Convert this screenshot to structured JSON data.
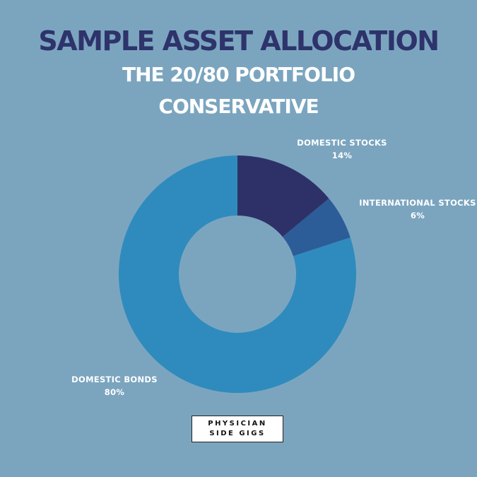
{
  "header": {
    "title": "SAMPLE ASSET ALLOCATION",
    "subtitle_line1": "THE 20/80 PORTFOLIO",
    "subtitle_line2": "CONSERVATIVE"
  },
  "chart_data": {
    "type": "pie",
    "style": "donut",
    "title": "SAMPLE ASSET ALLOCATION",
    "subtitle": "THE 20/80 PORTFOLIO CONSERVATIVE",
    "slices": [
      {
        "name": "DOMESTIC STOCKS",
        "value": 14,
        "value_label": "14%",
        "color": "#2e3168"
      },
      {
        "name": "INTERNATIONAL STOCKS",
        "value": 6,
        "value_label": "6%",
        "color": "#2c5d98"
      },
      {
        "name": "DOMESTIC BONDS",
        "value": 80,
        "value_label": "80%",
        "color": "#2f8bbd"
      }
    ]
  },
  "brand": {
    "line1": "PHYSICIAN",
    "line2": "SIDE GIGS"
  }
}
